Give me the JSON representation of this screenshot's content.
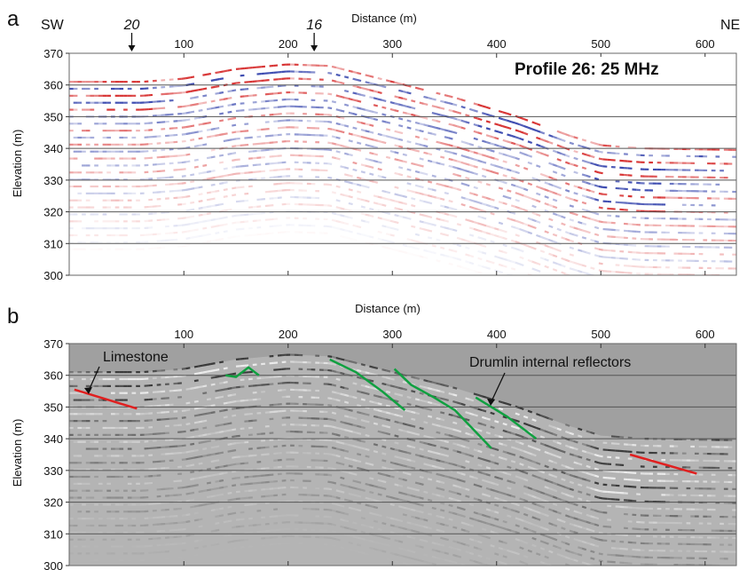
{
  "chart_data": [
    {
      "type": "heatmap",
      "panel": "a",
      "title": "Profile 26: 25 MHz",
      "xlabel": "Distance (m)",
      "ylabel": "Elevation (m)",
      "xlim": [
        -10,
        630
      ],
      "ylim": [
        300,
        370
      ],
      "x_ticks": [
        100,
        200,
        300,
        400,
        500,
        600
      ],
      "y_ticks": [
        300,
        310,
        320,
        330,
        340,
        350,
        360,
        370
      ],
      "grid": "horizontal",
      "direction_labels": [
        "SW",
        "NE"
      ],
      "markers": [
        {
          "label": "20",
          "x": 50
        },
        {
          "label": "16",
          "x": 225
        }
      ],
      "colors": {
        "positive": "#d42020",
        "negative": "#2a3aa8",
        "background": "#ffffff"
      },
      "surface": [
        {
          "x": 0,
          "y": 361
        },
        {
          "x": 60,
          "y": 361
        },
        {
          "x": 100,
          "y": 362
        },
        {
          "x": 150,
          "y": 365
        },
        {
          "x": 200,
          "y": 366.5
        },
        {
          "x": 240,
          "y": 366
        },
        {
          "x": 300,
          "y": 361
        },
        {
          "x": 360,
          "y": 356
        },
        {
          "x": 420,
          "y": 350
        },
        {
          "x": 470,
          "y": 344
        },
        {
          "x": 500,
          "y": 341
        },
        {
          "x": 540,
          "y": 340
        },
        {
          "x": 630,
          "y": 339.5
        }
      ]
    },
    {
      "type": "heatmap",
      "panel": "b",
      "xlabel": "Distance (m)",
      "ylabel": "Elevation (m)",
      "xlim": [
        -10,
        630
      ],
      "ylim": [
        300,
        370
      ],
      "x_ticks": [
        100,
        200,
        300,
        400,
        500,
        600
      ],
      "y_ticks": [
        300,
        310,
        320,
        330,
        340,
        350,
        360,
        370
      ],
      "grid": "horizontal",
      "colors": {
        "background": "#a0a0a0",
        "red_line": "#e02020",
        "green_line": "#10a040"
      },
      "annotations": [
        {
          "text": "Limestone",
          "x": 35,
          "y": 364
        },
        {
          "text": "Drumlin internal reflectors",
          "x": 370,
          "y": 362
        }
      ],
      "red_lines": [
        [
          {
            "x": -5,
            "y": 355.5
          },
          {
            "x": 55,
            "y": 349.5
          }
        ],
        [
          {
            "x": 528,
            "y": 335
          },
          {
            "x": 592,
            "y": 329
          }
        ]
      ],
      "green_lines": [
        [
          {
            "x": 140,
            "y": 360
          },
          {
            "x": 150,
            "y": 359.5
          },
          {
            "x": 162,
            "y": 362.5
          },
          {
            "x": 172,
            "y": 360
          }
        ],
        [
          {
            "x": 240,
            "y": 365
          },
          {
            "x": 265,
            "y": 361
          },
          {
            "x": 290,
            "y": 355
          },
          {
            "x": 312,
            "y": 349
          }
        ],
        [
          {
            "x": 302,
            "y": 362
          },
          {
            "x": 318,
            "y": 357
          },
          {
            "x": 340,
            "y": 353
          },
          {
            "x": 360,
            "y": 349
          },
          {
            "x": 395,
            "y": 337
          }
        ],
        [
          {
            "x": 380,
            "y": 353
          },
          {
            "x": 410,
            "y": 347
          },
          {
            "x": 438,
            "y": 340
          }
        ]
      ]
    }
  ]
}
